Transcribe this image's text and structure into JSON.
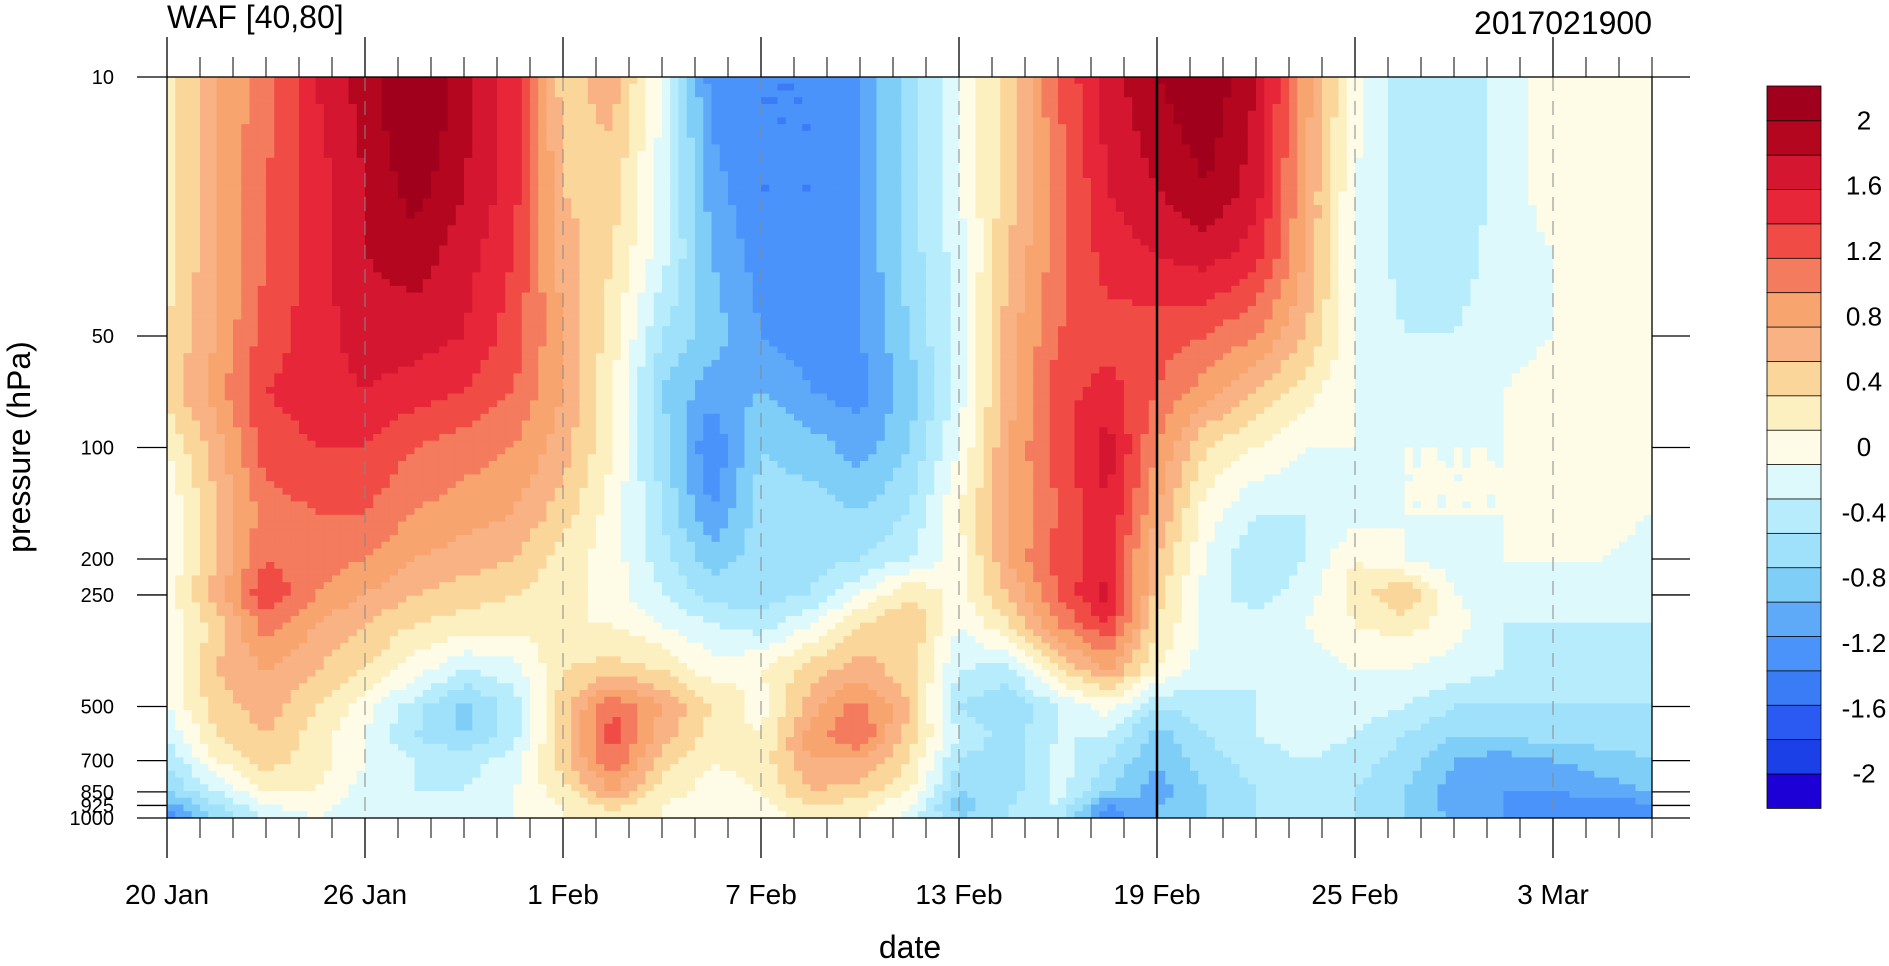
{
  "chart_data": {
    "type": "heatmap",
    "title": "WAF [40,80]",
    "subtitle": "2017021900",
    "xlabel": "date",
    "ylabel": "pressure (hPa)",
    "x_ticks": [
      "20 Jan",
      "26 Jan",
      "1 Feb",
      "7 Feb",
      "13 Feb",
      "19 Feb",
      "25 Feb",
      "3 Mar"
    ],
    "x_tick_days": [
      0,
      6,
      12,
      18,
      24,
      30,
      36,
      42
    ],
    "x_range_days": [
      0,
      45
    ],
    "y_ticks": [
      "10",
      "50",
      "100",
      "200",
      "250",
      "500",
      "700",
      "850",
      "925",
      "1000"
    ],
    "y_tick_values": [
      10,
      50,
      100,
      200,
      250,
      500,
      700,
      850,
      925,
      1000
    ],
    "y_range": [
      10,
      1000
    ],
    "y_scale": "log",
    "analysis_date_day": 30,
    "colorbar": {
      "levels": [
        -2,
        -1.8,
        -1.6,
        -1.4,
        -1.2,
        -1,
        -0.8,
        -0.6,
        -0.4,
        -0.2,
        0,
        0.2,
        0.4,
        0.6,
        0.8,
        1,
        1.2,
        1.4,
        1.6,
        1.8,
        2
      ],
      "labels": [
        "2",
        "1.6",
        "1.2",
        "0.8",
        "0.4",
        "0",
        "-0.4",
        "-0.8",
        "-1.2",
        "-1.6",
        "-2"
      ],
      "label_values": [
        2,
        1.6,
        1.2,
        0.8,
        0.4,
        0,
        -0.4,
        -0.8,
        -1.2,
        -1.6,
        -2
      ],
      "colors": [
        "#1d00d6",
        "#1c40e8",
        "#2a5af2",
        "#3a7bf6",
        "#4a93fa",
        "#5eaaf9",
        "#7fcef8",
        "#9fe0fa",
        "#b6ecfb",
        "#ddf9fb",
        "#fefbe6",
        "#fcefc0",
        "#fbd69b",
        "#f8b283",
        "#f7a46f",
        "#f47b5e",
        "#f04c45",
        "#e8263a",
        "#d41630",
        "#b4061f",
        "#a0001c"
      ]
    },
    "days": [
      0,
      1.5,
      3,
      4.5,
      6,
      7.5,
      9,
      10.5,
      12,
      13.5,
      15,
      16.5,
      18,
      19.5,
      21,
      22.5,
      24,
      25.5,
      27,
      28.5,
      30,
      31.5,
      33,
      34.5,
      36,
      37.5,
      39,
      40.5,
      42,
      43.5,
      45
    ],
    "levels_hpa": [
      10,
      20,
      30,
      50,
      70,
      100,
      150,
      200,
      250,
      300,
      400,
      500,
      600,
      700,
      850,
      925,
      1000
    ],
    "values": [
      [
        0.1,
        0.6,
        0.9,
        1.4,
        1.7,
        2.1,
        1.7,
        1.3,
        0.3,
        0.5,
        -0.2,
        -1.3,
        -1.4,
        -1.4,
        -1.2,
        -0.7,
        -0.2,
        0.3,
        1.0,
        1.5,
        1.8,
        2.0,
        1.6,
        0.7,
        -0.1,
        -0.5,
        -0.6,
        -0.3,
        -0.1,
        -0.1,
        -0.1
      ],
      [
        0.1,
        0.6,
        1.0,
        1.3,
        1.6,
        1.9,
        1.6,
        1.3,
        0.4,
        0.3,
        -0.3,
        -1.1,
        -1.4,
        -1.4,
        -1.2,
        -0.7,
        -0.2,
        0.3,
        0.9,
        1.4,
        1.6,
        1.8,
        1.5,
        0.6,
        -0.2,
        -0.5,
        -0.6,
        -0.3,
        -0.1,
        -0.2,
        -0.1
      ],
      [
        0.1,
        0.6,
        1.0,
        1.3,
        1.6,
        1.7,
        1.5,
        1.2,
        0.5,
        0.2,
        -0.3,
        -1.0,
        -1.3,
        -1.4,
        -1.2,
        -0.7,
        -0.3,
        0.4,
        0.9,
        1.3,
        1.4,
        1.5,
        1.3,
        0.6,
        -0.2,
        -0.5,
        -0.5,
        -0.3,
        -0.2,
        0,
        -0.1
      ],
      [
        0.2,
        0.6,
        1.1,
        1.3,
        1.5,
        1.5,
        1.4,
        1.1,
        0.6,
        0.1,
        -0.6,
        -0.9,
        -1.2,
        -1.3,
        -1.2,
        -0.8,
        -0.3,
        0.5,
        1.0,
        1.1,
        1.1,
        1.0,
        0.8,
        0.4,
        -0.2,
        -0.4,
        -0.4,
        -0.3,
        -0.2,
        -0.1,
        -0.1
      ],
      [
        0.3,
        0.7,
        1.2,
        1.3,
        1.4,
        1.3,
        1.2,
        1.0,
        0.6,
        0.0,
        -0.8,
        -1.1,
        -1.0,
        -1.2,
        -1.3,
        -0.9,
        -0.3,
        0.5,
        1.1,
        1.3,
        1.0,
        0.7,
        0.4,
        0.1,
        -0.2,
        -0.3,
        -0.3,
        -0.2,
        -0.1,
        -0.1,
        -0.1
      ],
      [
        0.0,
        0.5,
        1.1,
        1.2,
        1.2,
        1.0,
        0.9,
        0.8,
        0.5,
        0.0,
        -0.7,
        -1.4,
        -0.8,
        -0.9,
        -1.1,
        -0.8,
        -0.2,
        0.6,
        1.1,
        1.5,
        0.8,
        0.2,
        0.0,
        -0.2,
        -0.2,
        -0.2,
        -0.2,
        -0.2,
        -0.1,
        -0.1,
        -0.1
      ],
      [
        -0.2,
        0.4,
        0.9,
        1.0,
        1.0,
        0.8,
        0.7,
        0.6,
        0.3,
        -0.1,
        -0.6,
        -1.2,
        -0.7,
        -0.7,
        -0.8,
        -0.6,
        0.0,
        0.6,
        1.0,
        1.4,
        0.6,
        -0.1,
        -0.4,
        -0.4,
        -0.3,
        -0.2,
        -0.2,
        -0.2,
        -0.1,
        -0.1,
        -0.2
      ],
      [
        -0.2,
        0.4,
        1.0,
        0.9,
        0.8,
        0.6,
        0.5,
        0.4,
        0.1,
        -0.1,
        -0.5,
        -0.9,
        -0.7,
        -0.7,
        -0.6,
        -0.4,
        -0.1,
        0.6,
        1.1,
        1.3,
        0.4,
        -0.2,
        -0.6,
        -0.4,
        0.0,
        -0.2,
        -0.3,
        -0.2,
        -0.2,
        -0.2,
        -0.3
      ],
      [
        -0.1,
        0.5,
        1.2,
        0.8,
        0.6,
        0.4,
        0.3,
        0.2,
        0.1,
        -0.1,
        -0.4,
        -0.7,
        -0.7,
        -0.6,
        -0.2,
        0.2,
        -0.1,
        0.4,
        1.0,
        1.5,
        0.3,
        -0.3,
        -0.5,
        -0.3,
        0.1,
        0.4,
        -0.2,
        -0.3,
        -0.3,
        -0.3,
        -0.3
      ],
      [
        -0.2,
        0.3,
        0.9,
        0.6,
        0.4,
        0.2,
        0.1,
        0.1,
        0.0,
        0.0,
        -0.2,
        -0.4,
        -0.5,
        -0.2,
        0.2,
        0.4,
        -0.2,
        0.2,
        0.8,
        1.2,
        0.2,
        -0.3,
        -0.3,
        -0.2,
        0.0,
        0.1,
        -0.1,
        -0.4,
        -0.4,
        -0.4,
        -0.4
      ],
      [
        -0.2,
        0.4,
        0.6,
        0.4,
        0.2,
        -0.1,
        -0.4,
        -0.3,
        0.2,
        0.3,
        0.2,
        -0.1,
        0.0,
        0.3,
        0.5,
        0.3,
        -0.4,
        -0.5,
        0.2,
        0.6,
        0.0,
        -0.3,
        -0.4,
        -0.3,
        -0.2,
        -0.2,
        -0.3,
        -0.4,
        -0.5,
        -0.5,
        -0.5
      ],
      [
        -0.2,
        0.3,
        0.5,
        0.2,
        -0.1,
        -0.5,
        -0.9,
        -0.5,
        0.3,
        1.0,
        0.6,
        0.2,
        -0.1,
        0.5,
        0.9,
        0.4,
        -0.6,
        -0.8,
        -0.4,
        -0.1,
        -0.6,
        -0.5,
        -0.4,
        -0.3,
        -0.3,
        -0.4,
        -0.6,
        -0.6,
        -0.6,
        -0.6,
        -0.6
      ],
      [
        -0.4,
        0.2,
        0.4,
        0.1,
        -0.2,
        -0.6,
        -0.8,
        -0.5,
        0.3,
        1.1,
        0.5,
        0.1,
        0.0,
        0.7,
        1.0,
        0.3,
        -0.4,
        -0.7,
        -0.4,
        -0.4,
        -0.9,
        -0.6,
        -0.4,
        -0.3,
        -0.4,
        -0.6,
        -0.8,
        -0.8,
        -0.7,
        -0.7,
        -0.7
      ],
      [
        -0.6,
        0.0,
        0.3,
        0.1,
        -0.2,
        -0.4,
        -0.5,
        -0.3,
        0.3,
        1.0,
        0.3,
        0.0,
        0.1,
        0.6,
        0.6,
        0.2,
        -0.6,
        -0.8,
        -0.3,
        -0.6,
        -1.0,
        -0.7,
        -0.5,
        -0.4,
        -0.5,
        -0.7,
        -1.0,
        -1.1,
        -1.0,
        -0.9,
        -0.8
      ],
      [
        -0.8,
        -0.4,
        0.0,
        0.0,
        -0.3,
        -0.4,
        -0.4,
        -0.2,
        0.1,
        0.6,
        0.1,
        -0.1,
        0.0,
        0.4,
        0.3,
        0.0,
        -0.8,
        -0.7,
        -0.3,
        -0.8,
        -1.1,
        -0.8,
        -0.6,
        -0.5,
        -0.6,
        -0.8,
        -1.1,
        -1.2,
        -1.2,
        -1.1,
        -1.0
      ],
      [
        -1.1,
        -0.6,
        -0.2,
        -0.1,
        -0.3,
        -0.4,
        -0.3,
        -0.2,
        0.0,
        0.3,
        0.0,
        -0.1,
        -0.1,
        0.2,
        0.1,
        -0.2,
        -0.9,
        -0.6,
        -0.4,
        -1.2,
        -1.0,
        -0.8,
        -0.6,
        -0.5,
        -0.6,
        -0.8,
        -1.1,
        -1.2,
        -1.3,
        -1.4,
        -1.2
      ],
      [
        -1.3,
        -0.8,
        -0.4,
        -0.2,
        -0.4,
        -0.3,
        -0.3,
        -0.2,
        0.0,
        0.1,
        0.0,
        -0.1,
        -0.1,
        0.1,
        0.0,
        -0.3,
        -0.8,
        -0.6,
        -0.5,
        -1.3,
        -1.0,
        -0.8,
        -0.6,
        -0.5,
        -0.6,
        -0.8,
        -1.0,
        -1.2,
        -1.3,
        -1.3,
        -1.2
      ]
    ]
  }
}
